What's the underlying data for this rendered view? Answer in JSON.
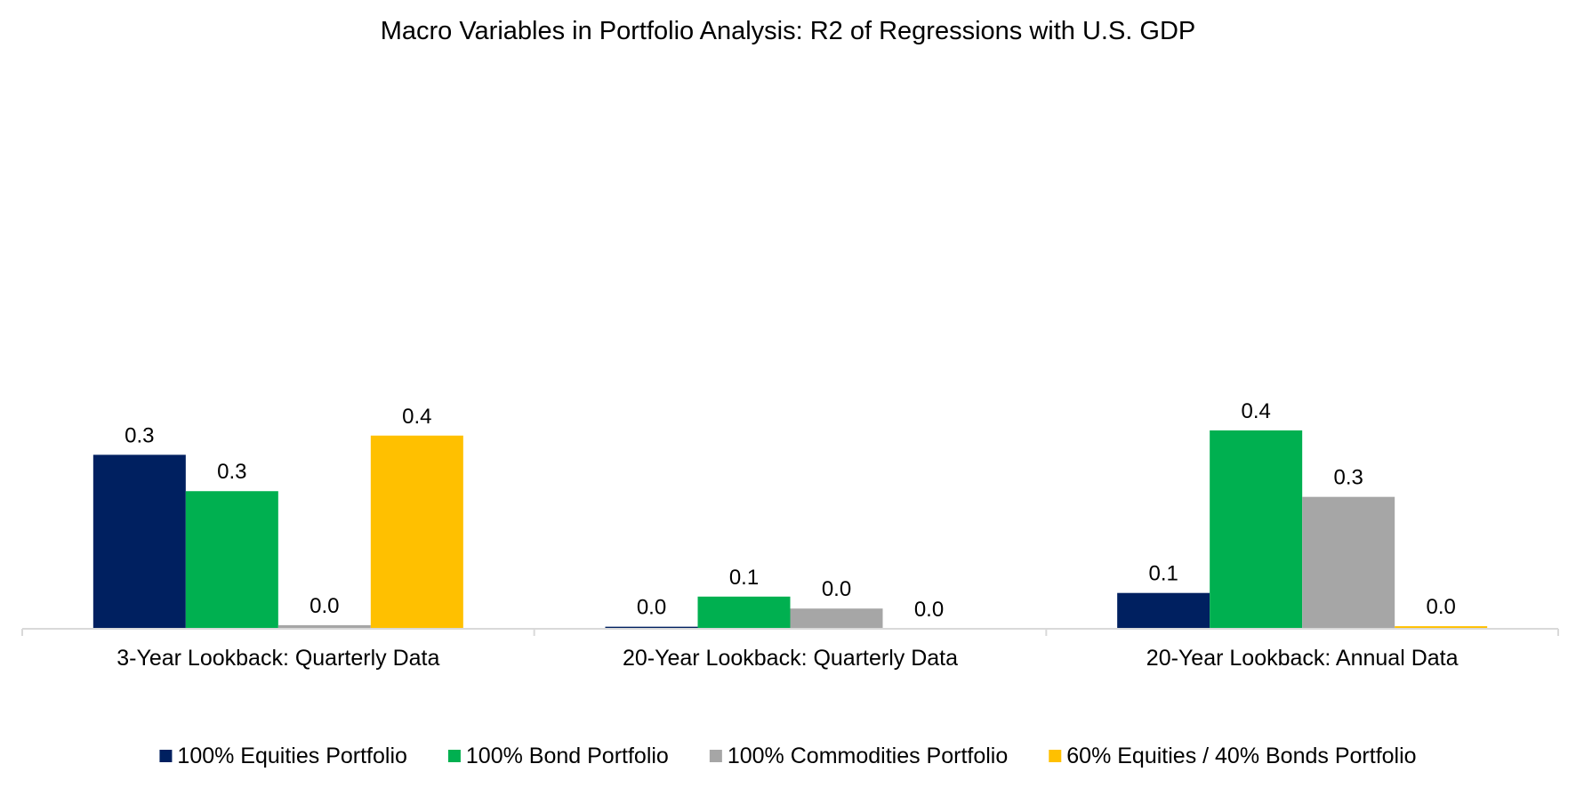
{
  "chart_data": {
    "type": "bar",
    "title": "Macro Variables in Portfolio Analysis: R2 of Regressions with U.S. GDP",
    "xlabel": "",
    "ylabel": "",
    "ylim": [
      0,
      1.0
    ],
    "grid": false,
    "legend_position": "bottom",
    "categories": [
      "3-Year Lookback: Quarterly Data",
      "20-Year Lookback: Quarterly Data",
      "20-Year Lookback: Annual Data"
    ],
    "series": [
      {
        "name": "100% Equities Portfolio",
        "color": "#002060",
        "values": [
          0.335,
          0.004,
          0.069
        ],
        "labels": [
          "0.3",
          "0.0",
          "0.1"
        ]
      },
      {
        "name": "100% Bond Portfolio",
        "color": "#00B050",
        "values": [
          0.265,
          0.062,
          0.382
        ],
        "labels": [
          "0.3",
          "0.1",
          "0.4"
        ]
      },
      {
        "name": "100% Commodities Portfolio",
        "color": "#A6A6A6",
        "values": [
          0.007,
          0.039,
          0.254
        ],
        "labels": [
          "0.0",
          "0.0",
          "0.3"
        ]
      },
      {
        "name": "60% Equities / 40% Bonds Portfolio",
        "color": "#FFC000",
        "values": [
          0.372,
          0.0,
          0.005
        ],
        "labels": [
          "0.4",
          "0.0",
          "0.0"
        ]
      }
    ]
  }
}
